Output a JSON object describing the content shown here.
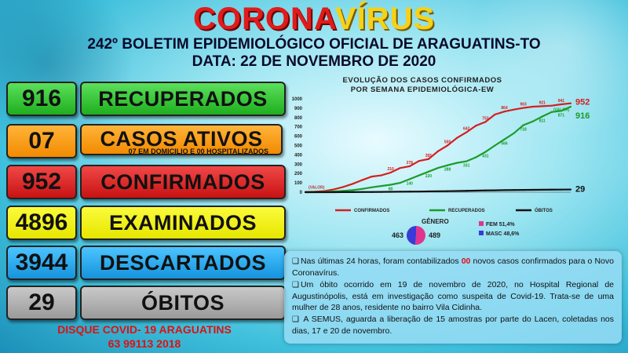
{
  "header": {
    "title_part1": "CORONA",
    "title_part2": "VÍRUS",
    "subtitle": "242º BOLETIM EPIDEMIOLÓGICO OFICIAL DE ARAGUATINS-TO",
    "date": "DATA: 22  DE NOVEMBRO DE 2020",
    "colors": {
      "title_red": "#e11b1b",
      "title_yellow": "#f4d21a"
    }
  },
  "stats": [
    {
      "value": "916",
      "label": "RECUPERADOS",
      "color": "#2fbf2f"
    },
    {
      "value": "07",
      "label": "CASOS ATIVOS",
      "note": "07 EM DOMICILIO E 00 HOSPITALIZADOS",
      "color": "#f7a11a"
    },
    {
      "value": "952",
      "label": "CONFIRMADOS",
      "color": "#e02020"
    },
    {
      "value": "4896",
      "label": "EXAMINADOS",
      "color": "#f2f21a"
    },
    {
      "value": "3944",
      "label": "DESCARTADOS",
      "color": "#2aaaf0"
    },
    {
      "value": "29",
      "label": "ÓBITOS",
      "color": "#b0b0b0"
    }
  ],
  "hotline": {
    "line1": "DISQUE COVID-  19 ARAGUATINS",
    "line2": "63 99113 2018"
  },
  "chart_data": {
    "type": "line",
    "title_line1": "EVOLUÇÃO DOS CASOS CONFIRMADOS",
    "title_line2": "POR SEMANA  EPIDEMIOLÓGICA-EW",
    "ylim": [
      0,
      1000
    ],
    "yticks": [
      0,
      100,
      200,
      300,
      400,
      500,
      600,
      700,
      800,
      900,
      1000
    ],
    "series": [
      {
        "name": "CONFIRMADOS",
        "color": "#d42020",
        "values": [
          2,
          5,
          12,
          30,
          56,
          90,
          130,
          167,
          180,
          210,
          259,
          278,
          335,
          355,
          439,
          500,
          582,
          642,
          712,
          753,
          832,
          864,
          885,
          903,
          916,
          921,
          927,
          941,
          952
        ]
      },
      {
        "name": "RECUPERADOS",
        "color": "#1c9c2a",
        "values": [
          0,
          1,
          3,
          8,
          14,
          22,
          35,
          52,
          66,
          80,
          100,
          140,
          180,
          220,
          260,
          288,
          314,
          331,
          374,
          431,
          500,
          566,
          631,
          718,
          758,
          811,
          859,
          871,
          916
        ]
      },
      {
        "name": "ÓBITOS",
        "color": "#111111",
        "values": [
          0,
          0,
          0,
          0,
          1,
          1,
          2,
          2,
          3,
          4,
          5,
          6,
          7,
          9,
          10,
          11,
          13,
          15,
          17,
          19,
          20,
          22,
          23,
          24,
          25,
          26,
          27,
          28,
          29
        ]
      }
    ],
    "end_labels": {
      "confirmados": "952",
      "recuperados": "916",
      "obitos": "29"
    },
    "valor_label": "(VALOR)",
    "legend": [
      "CONFIRMADOS",
      "RECUPERADOS",
      "ÓBITOS"
    ],
    "gender": {
      "title": "GÊNERO",
      "type": "pie",
      "left_value": "463",
      "right_value": "489",
      "slices": [
        {
          "label": "FEM  51,4%",
          "value": 51.4,
          "color": "#e0358f"
        },
        {
          "label": "MASC 48,6%",
          "value": 48.6,
          "color": "#3a3ad6"
        }
      ]
    }
  },
  "info": {
    "checkbox": "❑",
    "p1_a": "Nas últimas 24 horas, foram contabilizados ",
    "p1_num": "00",
    "p1_b": " novos casos confirmados para o Novo Coronavírus.",
    "p2": "Um óbito ocorrido em 19 de novembro de 2020, no Hospital Regional de Augustinópolis, está em investigação como suspeita de Covid-19. Trata-se de uma mulher de  28 anos, residente no bairro Vila Cidinha.",
    "p3": " A SEMUS, aguarda a liberação de 15 amostras por parte do Lacen, coletadas nos dias, 17 e 20 de novembro."
  }
}
